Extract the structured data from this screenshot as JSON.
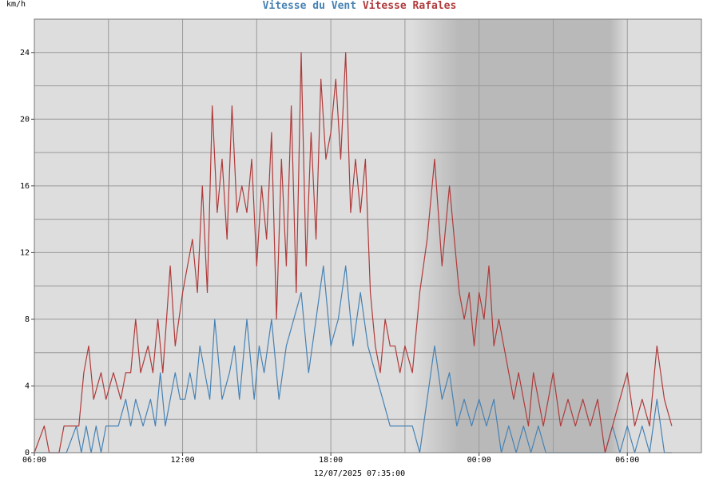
{
  "chart_data": {
    "type": "line",
    "title_series": [
      "Vitesse du Vent",
      "Vitesse Rafales"
    ],
    "ylabel": "km/h",
    "timestamp": "12/07/2025 07:35:00",
    "ylim": [
      0,
      26
    ],
    "yticks": [
      0,
      4,
      8,
      12,
      16,
      20,
      24
    ],
    "xlim": [
      0,
      27
    ],
    "xticks": [
      {
        "h": 0,
        "label": "06:00"
      },
      {
        "h": 6,
        "label": "12:00"
      },
      {
        "h": 12,
        "label": "18:00"
      },
      {
        "h": 18,
        "label": "00:00"
      },
      {
        "h": 24,
        "label": "06:00"
      }
    ],
    "grid": true,
    "night_shading": {
      "start": 15.3,
      "full_start": 17.2,
      "full_end": 23.3,
      "end": 24.0
    },
    "series": [
      {
        "name": "Vitesse du Vent",
        "color": "#4682b4",
        "x": [
          0,
          0.8,
          1.3,
          1.7,
          1.9,
          2.1,
          2.3,
          2.5,
          2.7,
          2.9,
          3.1,
          3.4,
          3.7,
          3.9,
          4.1,
          4.4,
          4.7,
          4.9,
          5.1,
          5.3,
          5.5,
          5.7,
          5.9,
          6.1,
          6.3,
          6.5,
          6.7,
          6.9,
          7.1,
          7.3,
          7.6,
          7.9,
          8.1,
          8.3,
          8.6,
          8.9,
          9.1,
          9.3,
          9.6,
          9.9,
          10.2,
          10.5,
          10.8,
          11.1,
          11.4,
          11.7,
          12.0,
          12.3,
          12.6,
          12.9,
          13.2,
          13.5,
          13.8,
          14.1,
          14.4,
          14.7,
          15.0,
          15.3,
          15.6,
          15.9,
          16.2,
          16.5,
          16.8,
          17.1,
          17.4,
          17.7,
          18.0,
          18.3,
          18.6,
          18.9,
          19.2,
          19.5,
          19.8,
          20.1,
          20.4,
          20.7,
          21.0,
          21.3,
          21.6,
          21.9,
          22.2,
          22.5,
          22.8,
          23.1,
          23.4,
          23.7,
          24.0,
          24.3,
          24.6,
          24.9,
          25.2,
          25.5,
          25.8
        ],
        "values": [
          0,
          0,
          0,
          1.6,
          0,
          1.6,
          0,
          1.6,
          0,
          1.6,
          1.6,
          1.6,
          3.2,
          1.6,
          3.2,
          1.6,
          3.2,
          1.6,
          4.8,
          1.6,
          3.2,
          4.8,
          3.2,
          3.2,
          4.8,
          3.2,
          6.4,
          4.8,
          3.2,
          8.0,
          3.2,
          4.8,
          6.4,
          3.2,
          8.0,
          3.2,
          6.4,
          4.8,
          8.0,
          3.2,
          6.4,
          8.0,
          9.6,
          4.8,
          8.0,
          11.2,
          6.4,
          8.0,
          11.2,
          6.4,
          9.6,
          6.4,
          4.8,
          3.2,
          1.6,
          1.6,
          1.6,
          1.6,
          0,
          3.2,
          6.4,
          3.2,
          4.8,
          1.6,
          3.2,
          1.6,
          3.2,
          1.6,
          3.2,
          0,
          1.6,
          0,
          1.6,
          0,
          1.6,
          0,
          0,
          0,
          0,
          0,
          0,
          0,
          0,
          0,
          1.6,
          0,
          1.6,
          0,
          1.6,
          0,
          3.2,
          0,
          0
        ]
      },
      {
        "name": "Vitesse Rafales",
        "color": "#b03a3a",
        "x": [
          0,
          0.4,
          0.6,
          1.0,
          1.2,
          1.5,
          1.8,
          2.0,
          2.2,
          2.4,
          2.7,
          2.9,
          3.2,
          3.5,
          3.7,
          3.9,
          4.1,
          4.3,
          4.6,
          4.8,
          5.0,
          5.2,
          5.5,
          5.7,
          6.0,
          6.2,
          6.4,
          6.6,
          6.8,
          7.0,
          7.2,
          7.4,
          7.6,
          7.8,
          8.0,
          8.2,
          8.4,
          8.6,
          8.8,
          9.0,
          9.2,
          9.4,
          9.6,
          9.8,
          10.0,
          10.2,
          10.4,
          10.6,
          10.8,
          11.0,
          11.2,
          11.4,
          11.6,
          11.8,
          12.0,
          12.2,
          12.4,
          12.6,
          12.8,
          13.0,
          13.2,
          13.4,
          13.6,
          13.8,
          14.0,
          14.2,
          14.4,
          14.6,
          14.8,
          15.0,
          15.3,
          15.6,
          15.9,
          16.2,
          16.5,
          16.8,
          17.0,
          17.2,
          17.4,
          17.6,
          17.8,
          18.0,
          18.2,
          18.4,
          18.6,
          18.8,
          19.0,
          19.2,
          19.4,
          19.6,
          19.8,
          20.0,
          20.2,
          20.4,
          20.6,
          20.8,
          21.0,
          21.3,
          21.6,
          21.9,
          22.2,
          22.5,
          22.8,
          23.1,
          23.4,
          23.7,
          24.0,
          24.3,
          24.6,
          24.9,
          25.2,
          25.5,
          25.8
        ],
        "values": [
          0,
          1.6,
          0,
          0,
          1.6,
          1.6,
          1.6,
          4.8,
          6.4,
          3.2,
          4.8,
          3.2,
          4.8,
          3.2,
          4.8,
          4.8,
          8.0,
          4.8,
          6.4,
          4.8,
          8.0,
          4.8,
          11.2,
          6.4,
          9.6,
          11.2,
          12.8,
          9.6,
          16.0,
          9.6,
          20.8,
          14.4,
          17.6,
          12.8,
          20.8,
          14.4,
          16.0,
          14.4,
          17.6,
          11.2,
          16.0,
          12.8,
          19.2,
          8.0,
          17.6,
          11.2,
          20.8,
          9.6,
          24.0,
          11.2,
          19.2,
          12.8,
          22.4,
          17.6,
          19.2,
          22.4,
          17.6,
          24.0,
          14.4,
          17.6,
          14.4,
          17.6,
          9.6,
          6.4,
          4.8,
          8.0,
          6.4,
          6.4,
          4.8,
          6.4,
          4.8,
          9.6,
          12.8,
          17.6,
          11.2,
          16.0,
          12.8,
          9.6,
          8.0,
          9.6,
          6.4,
          9.6,
          8.0,
          11.2,
          6.4,
          8.0,
          6.4,
          4.8,
          3.2,
          4.8,
          3.2,
          1.6,
          4.8,
          3.2,
          1.6,
          3.2,
          4.8,
          1.6,
          3.2,
          1.6,
          3.2,
          1.6,
          3.2,
          0,
          1.6,
          3.2,
          4.8,
          1.6,
          3.2,
          1.6,
          6.4,
          3.2,
          1.6
        ]
      }
    ]
  }
}
